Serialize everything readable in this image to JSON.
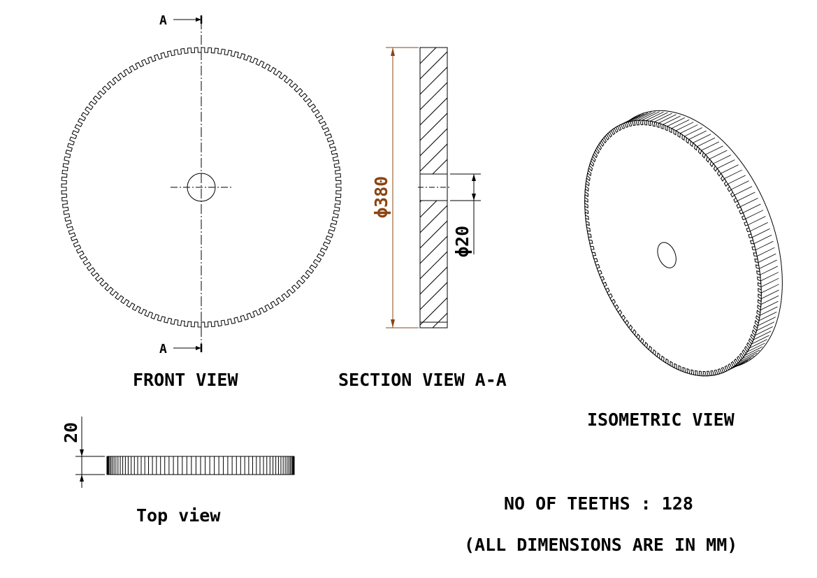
{
  "gear": {
    "teeth": 128,
    "outer_diameter": "380",
    "bore_diameter": "20",
    "width": "20"
  },
  "labels": {
    "section_marker_top": "A",
    "section_marker_bottom": "A",
    "front_view": "FRONT VIEW",
    "section_view": "SECTION VIEW A-A",
    "isometric_view": "ISOMETRIC VIEW",
    "top_view": "Top view"
  },
  "dimensions": {
    "outer_diameter": "ϕ380",
    "bore_diameter": "ϕ20",
    "face_width": "20"
  },
  "notes": {
    "teeth_count": "NO OF TEETHS : 128",
    "units": "(ALL DIMENSIONS ARE IN MM)"
  },
  "colors": {
    "line": "#000000",
    "dimension": "#8b4513"
  }
}
